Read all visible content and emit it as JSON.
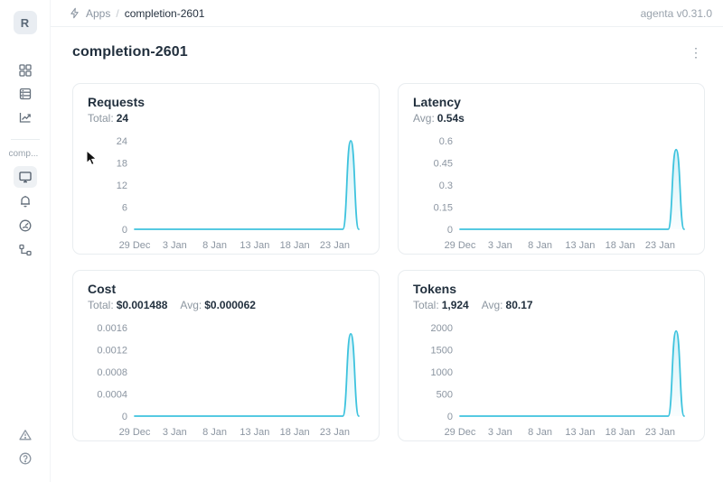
{
  "topbar": {
    "breadcrumb": {
      "app": "Apps",
      "separator": "/",
      "page": "completion-2601"
    },
    "version": "agenta v0.31.0"
  },
  "sidebar": {
    "avatar_initial": "R",
    "workspace_label": "comp...",
    "items": [
      {
        "name": "apps",
        "icon": "grid-icon"
      },
      {
        "name": "registry",
        "icon": "list-icon"
      },
      {
        "name": "observability",
        "icon": "chart-icon"
      },
      {
        "name": "overview",
        "icon": "monitor-icon",
        "selected": true
      },
      {
        "name": "playground",
        "icon": "bell-icon"
      },
      {
        "name": "evaluations",
        "icon": "gauge-icon"
      },
      {
        "name": "traces",
        "icon": "workflow-icon"
      },
      {
        "name": "alerts",
        "icon": "alert-triangle-icon"
      },
      {
        "name": "help",
        "icon": "help-icon"
      }
    ]
  },
  "page": {
    "title": "completion-2601"
  },
  "theme": {
    "line_color": "#3EC3DE",
    "fill_color": "#3EC3DE",
    "axis_text": "#8b95a1"
  },
  "chart_data": [
    {
      "type": "line",
      "title": "Requests",
      "stats": [
        {
          "label": "Total:",
          "value": "24"
        }
      ],
      "x_tick_labels": [
        "29 Dec",
        "3 Jan",
        "8 Jan",
        "13 Jan",
        "18 Jan",
        "23 Jan"
      ],
      "x_tick_days": [
        0,
        5,
        10,
        15,
        20,
        25
      ],
      "x_domain": [
        0,
        28
      ],
      "y_tick_values": [
        0,
        6,
        12,
        18,
        24
      ],
      "y_tick_labels": [
        "0",
        "6",
        "12",
        "18",
        "24"
      ],
      "points": [
        [
          0,
          0
        ],
        [
          26,
          0
        ],
        [
          27,
          24
        ],
        [
          28,
          0
        ]
      ]
    },
    {
      "type": "line",
      "title": "Latency",
      "stats": [
        {
          "label": "Avg:",
          "value": "0.54s"
        }
      ],
      "x_tick_labels": [
        "29 Dec",
        "3 Jan",
        "8 Jan",
        "13 Jan",
        "18 Jan",
        "23 Jan"
      ],
      "x_tick_days": [
        0,
        5,
        10,
        15,
        20,
        25
      ],
      "x_domain": [
        0,
        28
      ],
      "y_tick_values": [
        0,
        0.15,
        0.3,
        0.45,
        0.6
      ],
      "y_tick_labels": [
        "0",
        "0.15",
        "0.3",
        "0.45",
        "0.6"
      ],
      "points": [
        [
          0,
          0
        ],
        [
          26,
          0
        ],
        [
          27,
          0.54
        ],
        [
          28,
          0
        ]
      ]
    },
    {
      "type": "line",
      "title": "Cost",
      "stats": [
        {
          "label": "Total:",
          "value": "$0.001488"
        },
        {
          "label": "Avg:",
          "value": "$0.000062"
        }
      ],
      "x_tick_labels": [
        "29 Dec",
        "3 Jan",
        "8 Jan",
        "13 Jan",
        "18 Jan",
        "23 Jan"
      ],
      "x_tick_days": [
        0,
        5,
        10,
        15,
        20,
        25
      ],
      "x_domain": [
        0,
        28
      ],
      "y_tick_values": [
        0,
        0.0004,
        0.0008,
        0.0012,
        0.0016
      ],
      "y_tick_labels": [
        "0",
        "0.0004",
        "0.0008",
        "0.0012",
        "0.0016"
      ],
      "points": [
        [
          0,
          0
        ],
        [
          26,
          0
        ],
        [
          27,
          0.001488
        ],
        [
          28,
          0
        ]
      ]
    },
    {
      "type": "line",
      "title": "Tokens",
      "stats": [
        {
          "label": "Total:",
          "value": "1,924"
        },
        {
          "label": "Avg:",
          "value": "80.17"
        }
      ],
      "x_tick_labels": [
        "29 Dec",
        "3 Jan",
        "8 Jan",
        "13 Jan",
        "18 Jan",
        "23 Jan"
      ],
      "x_tick_days": [
        0,
        5,
        10,
        15,
        20,
        25
      ],
      "x_domain": [
        0,
        28
      ],
      "y_tick_values": [
        0,
        500,
        1000,
        1500,
        2000
      ],
      "y_tick_labels": [
        "0",
        "500",
        "1000",
        "1500",
        "2000"
      ],
      "points": [
        [
          0,
          0
        ],
        [
          26,
          0
        ],
        [
          27,
          1924
        ],
        [
          28,
          0
        ]
      ]
    }
  ]
}
